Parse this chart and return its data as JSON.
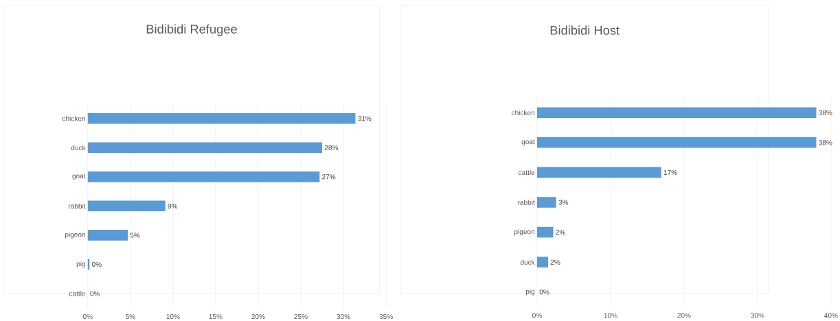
{
  "chart_data": [
    {
      "type": "bar",
      "orientation": "horizontal",
      "title": "Bidibidi Refugee",
      "categories": [
        "chicken",
        "duck",
        "goat",
        "rabbit",
        "pigeon",
        "pig",
        "cattle"
      ],
      "values": [
        31.4,
        27.5,
        27.2,
        9.1,
        4.7,
        0.2,
        0
      ],
      "value_labels": [
        "31%",
        "28%",
        "27%",
        "9%",
        "5%",
        "0%",
        "0%"
      ],
      "color": "#5b9bd5",
      "xlim": [
        0,
        35
      ],
      "xticks": [
        {
          "value": 0,
          "label": "0%"
        },
        {
          "value": 5,
          "label": "5%"
        },
        {
          "value": 10,
          "label": "10%"
        },
        {
          "value": 15,
          "label": "15%"
        },
        {
          "value": 20,
          "label": "20%"
        },
        {
          "value": 25,
          "label": "25%"
        },
        {
          "value": 30,
          "label": "30%"
        },
        {
          "value": 35,
          "label": "35%"
        }
      ],
      "grid": "x"
    },
    {
      "type": "bar",
      "orientation": "horizontal",
      "title": "Bidibidi Host",
      "categories": [
        "chicken",
        "goat",
        "cattle",
        "rabbit",
        "pigeon",
        "duck",
        "pig"
      ],
      "values": [
        38.0,
        38.0,
        16.9,
        2.6,
        2.2,
        1.5,
        0
      ],
      "value_labels": [
        "38%",
        "38%",
        "17%",
        "3%",
        "2%",
        "2%",
        "0%"
      ],
      "color": "#5b9bd5",
      "xlim": [
        0,
        40
      ],
      "xticks": [
        {
          "value": 0,
          "label": "0%"
        },
        {
          "value": 10,
          "label": "10%"
        },
        {
          "value": 20,
          "label": "20%"
        },
        {
          "value": 30,
          "label": "30%"
        },
        {
          "value": 40,
          "label": "40%"
        }
      ],
      "grid": "x"
    }
  ]
}
